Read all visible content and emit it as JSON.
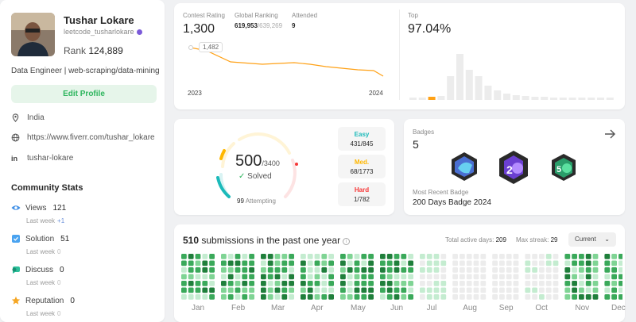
{
  "profile": {
    "name": "Tushar Lokare",
    "handle": "leetcode_tusharlokare",
    "rank_label": "Rank",
    "rank_value": "124,889",
    "bio": "Data Engineer | web-scraping/data-mining",
    "edit_label": "Edit Profile",
    "location": "India",
    "website": "https://www.fiverr.com/tushar_lokare",
    "linkedin": "tushar-lokare"
  },
  "community": {
    "title": "Community Stats",
    "items": [
      {
        "label": "Views",
        "value": "121",
        "lastweek": "Last week",
        "delta": "+1",
        "icon": "eye-icon",
        "color": "#3f8fe6"
      },
      {
        "label": "Solution",
        "value": "51",
        "lastweek": "Last week",
        "delta": "0",
        "icon": "check-square-icon",
        "color": "#4aa3f0"
      },
      {
        "label": "Discuss",
        "value": "0",
        "lastweek": "Last week",
        "delta": "0",
        "icon": "chat-icon",
        "color": "#2cbf9a"
      },
      {
        "label": "Reputation",
        "value": "0",
        "lastweek": "Last week",
        "delta": "0",
        "icon": "star-icon",
        "color": "#f5a623"
      }
    ]
  },
  "contest": {
    "rating_label": "Contest Rating",
    "rating": "1,300",
    "global_label": "Global Ranking",
    "global_value": "619,953",
    "global_total": "/639,269",
    "attended_label": "Attended",
    "attended": "9",
    "tooltip": "1,482",
    "year_start": "2023",
    "year_end": "2024",
    "top_label": "Top",
    "top_value": "97.04%"
  },
  "solved": {
    "count": "500",
    "total": "/3400",
    "solved_label": "Solved",
    "attempting_count": "99",
    "attempting_label": "Attempting",
    "easy": {
      "label": "Easy",
      "value": "431/845",
      "color": "#1cbaba"
    },
    "medium": {
      "label": "Med.",
      "value": "68/1773",
      "color": "#ffb700"
    },
    "hard": {
      "label": "Hard",
      "value": "1/782",
      "color": "#f63737"
    }
  },
  "badges": {
    "label": "Badges",
    "count": "5",
    "recent_label": "Most Recent Badge",
    "recent_name": "200 Days Badge 2024"
  },
  "submissions": {
    "count": "510",
    "text": "submissions in the past one year",
    "active_label": "Total active days:",
    "active_value": "209",
    "streak_label": "Max streak:",
    "streak_value": "29",
    "selector": "Current",
    "months": [
      "Jan",
      "Feb",
      "Mar",
      "Apr",
      "May",
      "Jun",
      "Jul",
      "Aug",
      "Sep",
      "Oct",
      "Nov",
      "Dec"
    ]
  },
  "colors": {
    "accent_green": "#2db55d",
    "chart_line": "#ffa116"
  }
}
